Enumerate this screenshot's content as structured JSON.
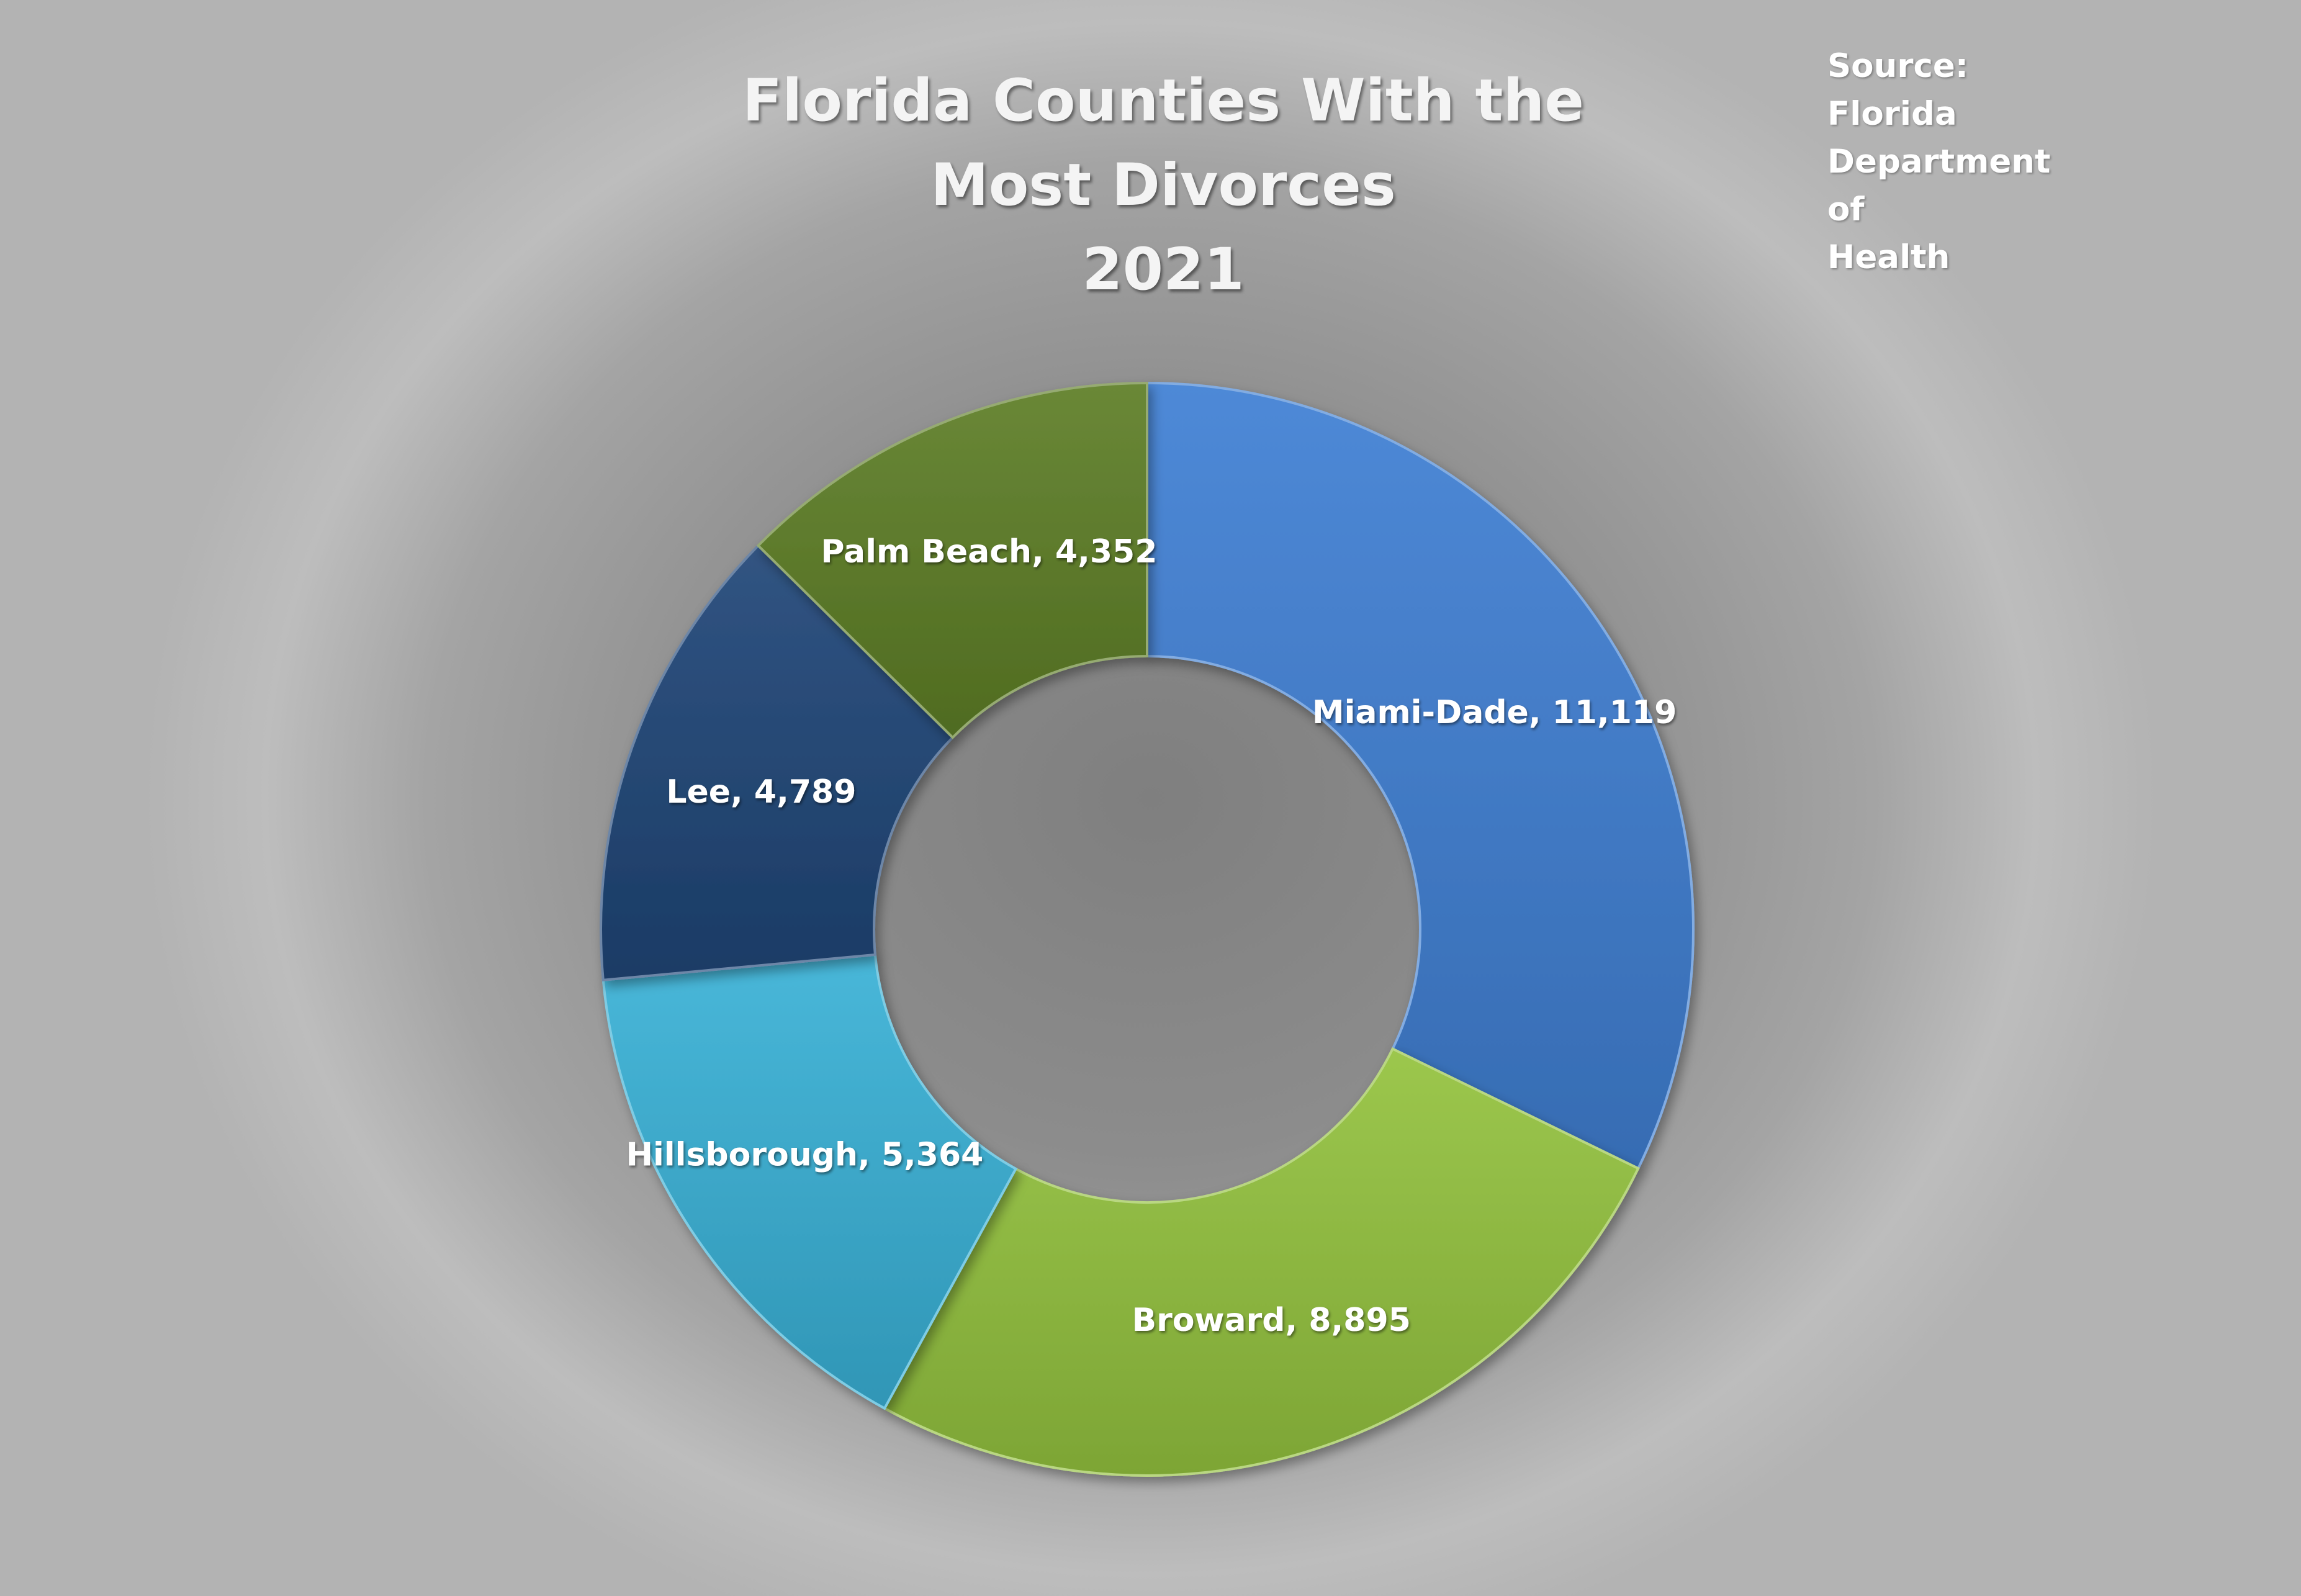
{
  "title_lines": [
    "Florida Counties With the",
    "Most Divorces",
    "2021"
  ],
  "source_lines": [
    "Source: Florida",
    "Department of",
    "Health"
  ],
  "chart_data": {
    "type": "pie",
    "subtype": "doughnut",
    "title": "Florida Counties With the Most Divorces 2021",
    "categories": [
      "Miami-Dade",
      "Broward",
      "Hillsborough",
      "Lee",
      "Palm Beach"
    ],
    "values": [
      11119,
      8895,
      5364,
      4789,
      4352
    ],
    "data_labels": [
      "Miami-Dade, 11,119",
      "Broward, 8,895",
      "Hillsborough, 5,364",
      "Lee, 4,789",
      "Palm Beach, 4,352"
    ],
    "colors": [
      "#3f7fd3",
      "#93c23e",
      "#38b1d6",
      "#1f4577",
      "#5d7e26"
    ],
    "legend": "none",
    "start_angle": "12 o'clock, clockwise"
  }
}
